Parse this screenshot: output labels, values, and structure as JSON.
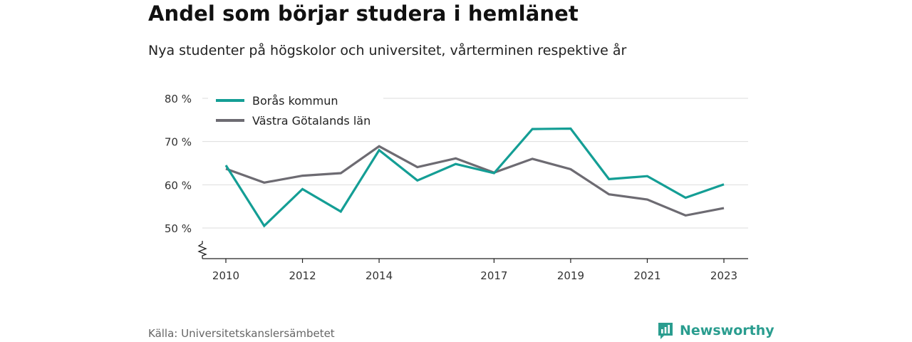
{
  "title": "Andel som börjar studera i hemlänet",
  "subtitle": "Nya studenter på högskolor och universitet, vårterminen respektive år",
  "source": "Källa: Universitetskanslersämbetet",
  "brand": {
    "name": "Newsworthy",
    "icon": "newsworthy-logo-icon"
  },
  "colors": {
    "primary": "#149e95",
    "secondary": "#6d6b72",
    "grid": "#dddddd",
    "axis": "#222222"
  },
  "chart_data": {
    "type": "line",
    "x": [
      2010,
      2011,
      2012,
      2013,
      2014,
      2015,
      2016,
      2017,
      2018,
      2019,
      2020,
      2021,
      2022,
      2023
    ],
    "x_tick_values": [
      2010,
      2012,
      2014,
      2017,
      2019,
      2021,
      2023
    ],
    "x_tick_labels": [
      "2010",
      "2012",
      "2014",
      "2017",
      "2019",
      "2021",
      "2023"
    ],
    "y_tick_values": [
      50,
      60,
      70,
      80
    ],
    "y_tick_labels": [
      "50 %",
      "60 %",
      "70 %",
      "80 %"
    ],
    "ylim": [
      43,
      82
    ],
    "y_axis_break": true,
    "grid": true,
    "legend_position": "top-left",
    "series": [
      {
        "name": "Borås kommun",
        "color": "#149e95",
        "values": [
          64.5,
          50.5,
          59.0,
          53.8,
          68.0,
          61.0,
          64.8,
          62.7,
          72.9,
          73.0,
          61.3,
          62.0,
          57.0,
          60.1
        ]
      },
      {
        "name": "Västra Götalands län",
        "color": "#6d6b72",
        "values": [
          63.7,
          60.5,
          62.1,
          62.7,
          68.9,
          64.1,
          66.1,
          62.8,
          66.0,
          63.6,
          57.8,
          56.6,
          52.9,
          54.6
        ]
      }
    ]
  }
}
